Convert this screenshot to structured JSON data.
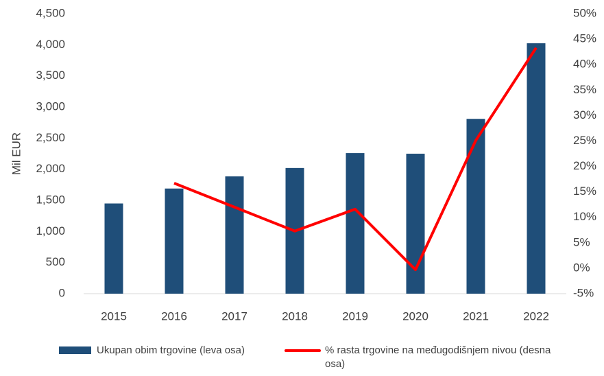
{
  "chart_data": {
    "type": "bar_line",
    "categories": [
      "2015",
      "2016",
      "2017",
      "2018",
      "2019",
      "2020",
      "2021",
      "2022"
    ],
    "series": [
      {
        "name": "Ukupan obim trgovine (leva osa)",
        "type": "bar",
        "color": "#1f4e79",
        "values": [
          1450,
          1690,
          1885,
          2020,
          2260,
          2250,
          2810,
          4025
        ]
      },
      {
        "name": "% rasta trgovine na međugodišnjem nivou (desna osa)",
        "type": "line",
        "axis": "y2",
        "color": "#ff0000",
        "values": [
          null,
          16.7,
          12.0,
          7.3,
          11.6,
          -0.3,
          25.1,
          43.3
        ]
      }
    ],
    "ylabel": "Mil EUR",
    "ylim": [
      0,
      4500
    ],
    "yticks": [
      0,
      500,
      {
        "value": 1000,
        "label": "1,000"
      },
      {
        "value": 1500,
        "label": "1,500"
      },
      {
        "value": 2000,
        "label": "2,000"
      },
      {
        "value": 2500,
        "label": "2,500"
      },
      {
        "value": 3000,
        "label": "3,000"
      },
      {
        "value": 3500,
        "label": "3,500"
      },
      {
        "value": 4000,
        "label": "4,000"
      },
      {
        "value": 4500,
        "label": "4,500"
      }
    ],
    "y2lim": [
      -5,
      50
    ],
    "y2ticks": [
      {
        "value": -5,
        "label": "-5%"
      },
      {
        "value": 0,
        "label": "0%"
      },
      {
        "value": 5,
        "label": "5%"
      },
      {
        "value": 10,
        "label": "10%"
      },
      {
        "value": 15,
        "label": "15%"
      },
      {
        "value": 20,
        "label": "20%"
      },
      {
        "value": 25,
        "label": "25%"
      },
      {
        "value": 30,
        "label": "30%"
      },
      {
        "value": 35,
        "label": "35%"
      },
      {
        "value": 40,
        "label": "40%"
      },
      {
        "value": 45,
        "label": "45%"
      },
      {
        "value": 50,
        "label": "50%"
      }
    ],
    "grid": false,
    "legend": "bottom"
  }
}
